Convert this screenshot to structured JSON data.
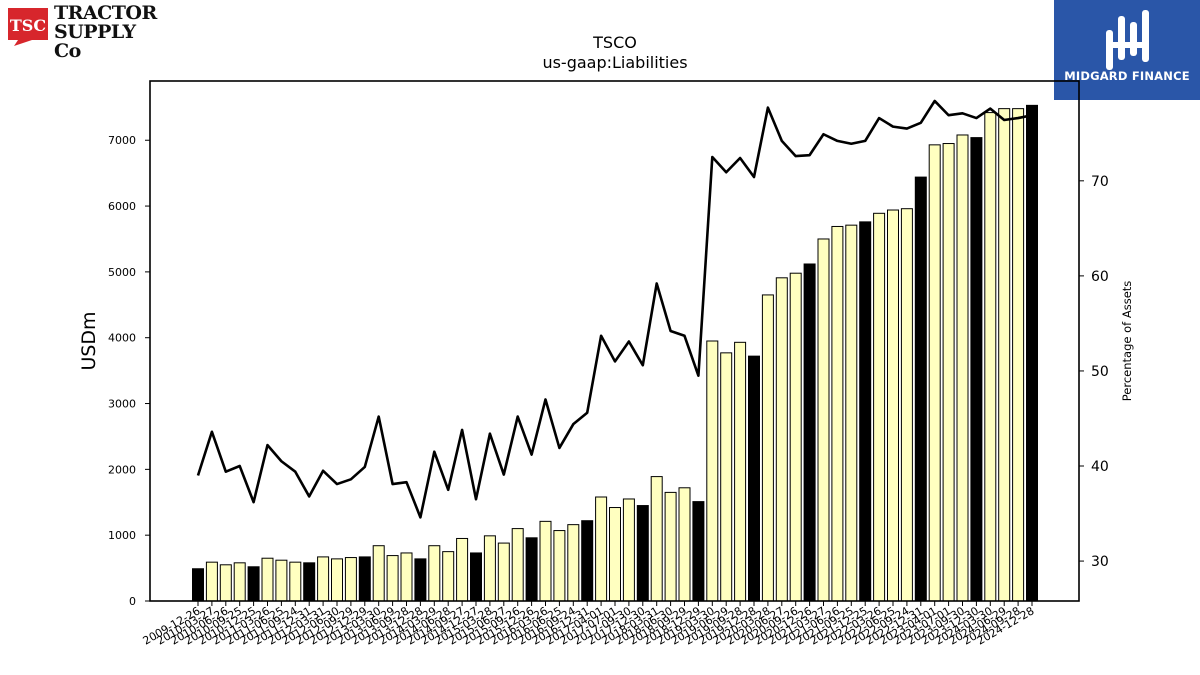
{
  "logos": {
    "left": {
      "badge": "TSC",
      "line1": "TRACTOR",
      "line2": "SUPPLY Co"
    },
    "right": {
      "name": "MIDGARD FINANCE"
    }
  },
  "chart_data": {
    "type": "bar",
    "title": "TSCO",
    "subtitle": "us-gaap:Liabilities",
    "ylabel": "USDm",
    "y2label": "Percentage of Assets",
    "ylim": [
      0,
      7900
    ],
    "y2lim": [
      25.8,
      80.5
    ],
    "yticks": [
      0,
      1000,
      2000,
      3000,
      4000,
      5000,
      6000,
      7000
    ],
    "y2ticks": [
      30,
      40,
      50,
      60,
      70
    ],
    "colors": {
      "bar": "#ffffc0",
      "bar_year_end": "#000000",
      "line": "#000000"
    },
    "categories": [
      "2009-12-26",
      "2010-03-27",
      "2010-06-26",
      "2010-09-25",
      "2010-12-25",
      "2011-03-26",
      "2011-06-25",
      "2011-09-24",
      "2011-12-31",
      "2012-03-31",
      "2012-06-30",
      "2012-09-29",
      "2012-12-29",
      "2013-03-30",
      "2013-06-29",
      "2013-09-28",
      "2013-12-28",
      "2014-03-29",
      "2014-06-28",
      "2014-09-27",
      "2014-12-27",
      "2015-03-28",
      "2015-06-27",
      "2015-09-26",
      "2015-12-26",
      "2016-03-26",
      "2016-06-25",
      "2016-09-24",
      "2016-12-31",
      "2017-04-01",
      "2017-07-01",
      "2017-09-30",
      "2017-12-30",
      "2018-03-31",
      "2018-06-30",
      "2018-09-29",
      "2018-12-29",
      "2019-03-30",
      "2019-06-29",
      "2019-09-28",
      "2019-12-28",
      "2020-03-28",
      "2020-06-27",
      "2020-09-26",
      "2020-12-26",
      "2021-03-27",
      "2021-06-26",
      "2021-09-25",
      "2021-12-25",
      "2022-03-26",
      "2022-06-25",
      "2022-09-24",
      "2022-12-31",
      "2023-04-01",
      "2023-07-01",
      "2023-09-30",
      "2023-12-30",
      "2024-03-30",
      "2024-06-29",
      "2024-09-28",
      "2024-12-28"
    ],
    "year_end": [
      true,
      false,
      false,
      false,
      true,
      false,
      false,
      false,
      true,
      false,
      false,
      false,
      true,
      false,
      false,
      false,
      true,
      false,
      false,
      false,
      true,
      false,
      false,
      false,
      true,
      false,
      false,
      false,
      true,
      false,
      false,
      false,
      true,
      false,
      false,
      false,
      true,
      false,
      false,
      false,
      true,
      false,
      false,
      false,
      true,
      false,
      false,
      false,
      true,
      false,
      false,
      false,
      true,
      false,
      false,
      false,
      true,
      false,
      false,
      false,
      true
    ],
    "series": [
      {
        "name": "Liabilities",
        "values": [
          490,
          590,
          550,
          580,
          520,
          650,
          620,
          590,
          580,
          670,
          640,
          660,
          670,
          840,
          690,
          730,
          640,
          840,
          750,
          950,
          730,
          990,
          880,
          1100,
          960,
          1210,
          1070,
          1160,
          1220,
          1580,
          1420,
          1550,
          1450,
          1890,
          1650,
          1720,
          1510,
          3950,
          3770,
          3930,
          3720,
          4650,
          4910,
          4980,
          5120,
          5500,
          5690,
          5710,
          5760,
          5890,
          5940,
          5960,
          6440,
          6930,
          6950,
          7080,
          7040,
          7420,
          7480,
          7480,
          7530
        ]
      },
      {
        "name": "Percentage of Assets",
        "values": [
          39.0,
          43.6,
          39.4,
          40.0,
          36.2,
          42.2,
          40.5,
          39.4,
          36.8,
          39.5,
          38.1,
          38.6,
          39.9,
          45.2,
          38.1,
          38.3,
          34.6,
          41.5,
          37.5,
          43.8,
          36.5,
          43.4,
          39.1,
          45.2,
          41.2,
          47.0,
          41.9,
          44.4,
          45.6,
          53.7,
          51.0,
          53.1,
          50.6,
          59.2,
          54.2,
          53.7,
          49.5,
          72.5,
          70.9,
          72.4,
          70.4,
          77.7,
          74.2,
          72.6,
          72.7,
          74.9,
          74.2,
          73.9,
          74.2,
          76.6,
          75.7,
          75.5,
          76.1,
          78.4,
          76.9,
          77.1,
          76.6,
          77.6,
          76.4,
          76.6,
          76.9
        ]
      }
    ]
  }
}
